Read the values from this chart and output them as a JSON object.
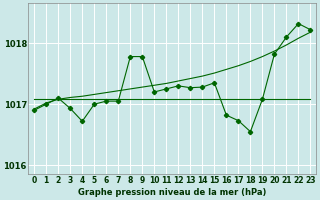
{
  "xlabel": "Graphe pression niveau de la mer (hPa)",
  "background_color": "#cce8e8",
  "grid_color": "#b8d8d8",
  "line_color": "#006600",
  "ylim": [
    1015.85,
    1018.65
  ],
  "yticks": [
    1016,
    1017,
    1018
  ],
  "xlim": [
    -0.5,
    23.5
  ],
  "xticks": [
    0,
    1,
    2,
    3,
    4,
    5,
    6,
    7,
    8,
    9,
    10,
    11,
    12,
    13,
    14,
    15,
    16,
    17,
    18,
    19,
    20,
    21,
    22,
    23
  ],
  "series_zigzag": [
    1016.9,
    1017.0,
    1017.1,
    1016.93,
    1016.72,
    1017.0,
    1017.05,
    1017.05,
    1017.78,
    1017.78,
    1017.2,
    1017.25,
    1017.3,
    1017.27,
    1017.28,
    1017.35,
    1016.82,
    1016.73,
    1016.55,
    1017.08,
    1017.82,
    1018.1,
    1018.32,
    1018.22
  ],
  "series_trend": [
    1016.92,
    1017.02,
    1017.08,
    1017.11,
    1017.13,
    1017.16,
    1017.19,
    1017.22,
    1017.25,
    1017.28,
    1017.31,
    1017.34,
    1017.38,
    1017.42,
    1017.46,
    1017.51,
    1017.57,
    1017.63,
    1017.7,
    1017.78,
    1017.87,
    1017.97,
    1018.08,
    1018.18
  ],
  "series_flat": [
    1017.08,
    1017.08,
    1017.08,
    1017.08,
    1017.08,
    1017.08,
    1017.08,
    1017.08,
    1017.08,
    1017.08,
    1017.08,
    1017.08,
    1017.08,
    1017.08,
    1017.08,
    1017.08,
    1017.08,
    1017.08,
    1017.08,
    1017.08,
    1017.08,
    1017.08,
    1017.08,
    1017.08
  ],
  "series_cross": [
    1016.9,
    1017.0,
    1017.1,
    1016.93,
    1016.72,
    1017.0,
    1017.05,
    1017.05,
    1017.78,
    1017.78,
    1017.2,
    1017.25,
    1017.3,
    1017.27,
    1017.28,
    1017.35,
    1016.82,
    1016.73,
    1016.55,
    1017.08,
    1017.82,
    1018.1,
    1018.32,
    1018.22
  ],
  "xlabel_fontsize": 6.0,
  "tick_fontsize": 5.5,
  "ytick_fontsize": 6.0,
  "linewidth": 0.8,
  "markersize_diamond": 2.2,
  "markersize_cross": 3.5
}
